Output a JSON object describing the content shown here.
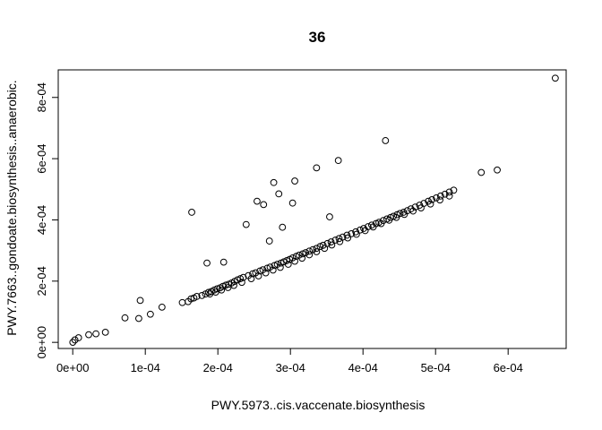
{
  "chart_data": {
    "type": "scatter",
    "title": "36",
    "xlabel": "PWY.5973..cis.vaccenate.biosynthesis",
    "ylabel": "PWY.7663..gondoate.biosynthesis..anaerobic.",
    "xlim": [
      -2e-05,
      0.00068
    ],
    "ylim": [
      -2e-05,
      0.00089
    ],
    "x_ticks": [
      0,
      0.0001,
      0.0002,
      0.0003,
      0.0004,
      0.0005,
      0.0006
    ],
    "x_tick_labels": [
      "0e+00",
      "1e-04",
      "2e-04",
      "3e-04",
      "4e-04",
      "5e-04",
      "6e-04"
    ],
    "y_ticks": [
      0,
      0.0002,
      0.0004,
      0.0006,
      0.0008
    ],
    "y_tick_labels": [
      "0e+00",
      "2e-04",
      "4e-04",
      "6e-04",
      "8e-04"
    ],
    "grid": false,
    "legend": "none",
    "marker": "open-circle",
    "x": [
      1e-07,
      3e-06,
      8e-06,
      2.2e-05,
      3.2e-05,
      4.5e-05,
      7.2e-05,
      9.1e-05,
      9.3e-05,
      0.000107,
      0.000123,
      0.000151,
      0.000159,
      0.000163,
      0.000167,
      0.000171,
      0.000178,
      0.000183,
      0.000187,
      0.000191,
      0.000195,
      0.000199,
      0.000203,
      0.000207,
      0.000211,
      0.000215,
      0.000219,
      0.000223,
      0.000227,
      0.000231,
      0.000235,
      0.000242,
      0.000248,
      0.000252,
      0.000258,
      0.000262,
      0.000268,
      0.000272,
      0.000278,
      0.000282,
      0.000287,
      0.000291,
      0.000295,
      0.000299,
      0.000303,
      0.000308,
      0.000312,
      0.000317,
      0.000321,
      0.000326,
      0.000331,
      0.000336,
      0.000341,
      0.000345,
      0.000351,
      0.000356,
      0.000362,
      0.000367,
      0.000372,
      0.000378,
      0.000384,
      0.00039,
      0.000396,
      0.000401,
      0.000407,
      0.000412,
      0.000418,
      0.000422,
      0.000428,
      0.000433,
      0.000438,
      0.000442,
      0.000447,
      0.000451,
      0.000456,
      0.000461,
      0.000466,
      0.000472,
      0.000478,
      0.000484,
      0.00049,
      0.000495,
      0.000501,
      0.000507,
      0.000513,
      0.000519,
      0.000525,
      0.000189,
      0.000197,
      0.000205,
      0.000214,
      0.000222,
      0.000233,
      0.000246,
      0.000256,
      0.000266,
      0.000276,
      0.000286,
      0.000297,
      0.000306,
      0.000316,
      0.000326,
      0.000336,
      0.000347,
      0.000357,
      0.000368,
      0.000379,
      0.000391,
      0.000403,
      0.000414,
      0.000425,
      0.000436,
      0.000446,
      0.000457,
      0.000469,
      0.00048,
      0.000493,
      0.000506,
      0.000519,
      0.000164,
      0.000185,
      0.000208,
      0.000239,
      0.000254,
      0.000263,
      0.000271,
      0.000277,
      0.000284,
      0.000289,
      0.000303,
      0.000306,
      0.000336,
      0.000354,
      0.000366,
      0.000431,
      0.000563,
      0.000585,
      0.000665
    ],
    "y": [
      1e-07,
      8e-06,
      1.5e-05,
      2.5e-05,
      2.8e-05,
      3.3e-05,
      8e-05,
      7.8e-05,
      0.000137,
      9.2e-05,
      0.000115,
      0.00013,
      0.000133,
      0.000142,
      0.000145,
      0.00015,
      0.000153,
      0.000158,
      0.000163,
      0.000166,
      0.000171,
      0.000175,
      0.000178,
      0.000183,
      0.000187,
      0.00019,
      0.000194,
      0.000199,
      0.000204,
      0.000208,
      0.000212,
      0.000218,
      0.000224,
      0.000227,
      0.000233,
      0.000237,
      0.000242,
      0.000246,
      0.000251,
      0.000255,
      0.000259,
      0.000263,
      0.000267,
      0.000271,
      0.000276,
      0.000281,
      0.000285,
      0.000289,
      0.000293,
      0.000298,
      0.000303,
      0.000307,
      0.000313,
      0.000317,
      0.000323,
      0.000328,
      0.000334,
      0.000339,
      0.000344,
      0.00035,
      0.000355,
      0.000361,
      0.000367,
      0.000372,
      0.000378,
      0.000383,
      0.000388,
      0.000392,
      0.000398,
      0.000403,
      0.000408,
      0.000412,
      0.000417,
      0.000421,
      0.000425,
      0.00043,
      0.000436,
      0.000442,
      0.000448,
      0.000454,
      0.000461,
      0.000466,
      0.000472,
      0.000478,
      0.000484,
      0.000491,
      0.000497,
      0.000158,
      0.000164,
      0.000171,
      0.000179,
      0.000186,
      0.000196,
      0.000208,
      0.000217,
      0.000227,
      0.000236,
      0.000245,
      0.000255,
      0.000265,
      0.000275,
      0.000286,
      0.000296,
      0.000307,
      0.000318,
      0.000329,
      0.000341,
      0.000353,
      0.000365,
      0.000377,
      0.000388,
      0.000399,
      0.000408,
      0.000418,
      0.000429,
      0.000439,
      0.000452,
      0.000465,
      0.000478,
      0.000425,
      0.000259,
      0.000262,
      0.000385,
      0.000461,
      0.00045,
      0.000331,
      0.000522,
      0.000485,
      0.000376,
      0.000455,
      0.000527,
      0.00057,
      0.00041,
      0.000594,
      0.000659,
      0.000555,
      0.000563,
      0.000863
    ]
  }
}
